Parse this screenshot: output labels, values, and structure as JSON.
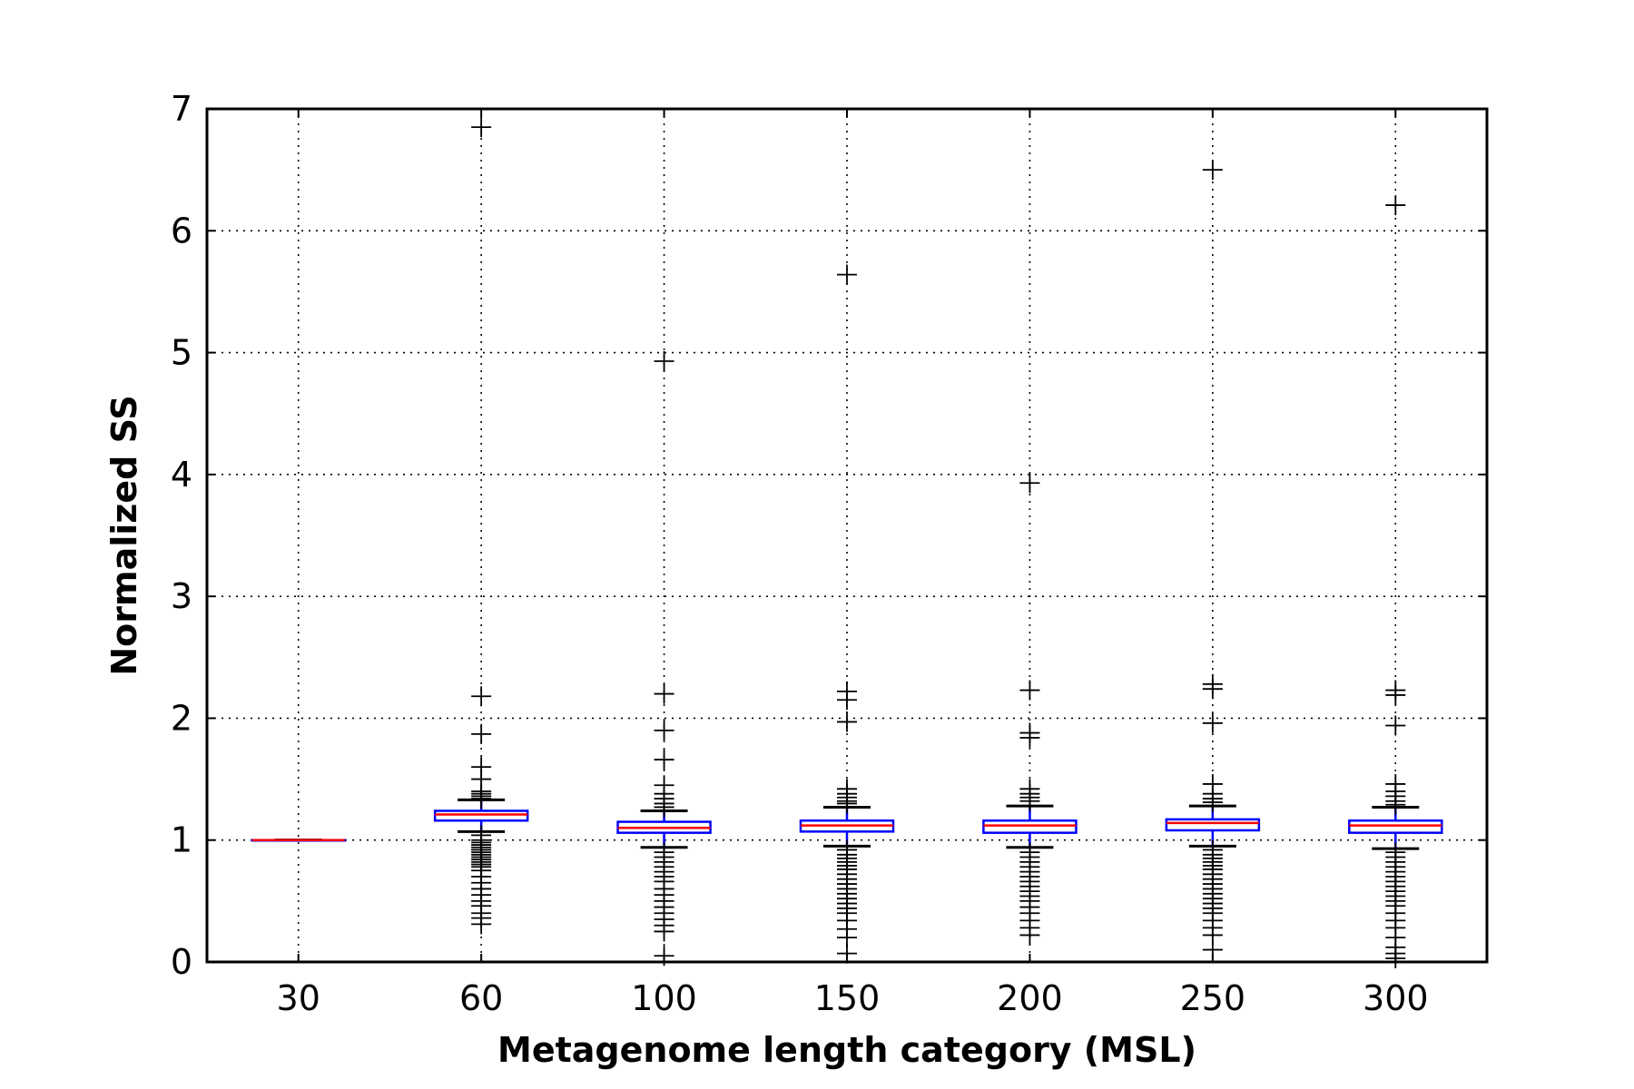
{
  "chart_data": {
    "type": "boxplot",
    "title": "",
    "xlabel": "Metagenome length category (MSL)",
    "ylabel": "Normalized SS",
    "categories": [
      "30",
      "60",
      "100",
      "150",
      "200",
      "250",
      "300"
    ],
    "ylim": [
      0,
      7
    ],
    "yticks": [
      0,
      1,
      2,
      3,
      4,
      5,
      6,
      7
    ],
    "grid": true,
    "grid_style": "dotted",
    "colors": {
      "box": "#0000ff",
      "median": "#ff0000",
      "whisker": "#000000",
      "flier": "#000000"
    },
    "boxes": [
      {
        "category": "30",
        "q1": 1.0,
        "median": 1.0,
        "q3": 1.0,
        "whisker_low": 1.0,
        "whisker_high": 1.0,
        "fliers": []
      },
      {
        "category": "60",
        "q1": 1.16,
        "median": 1.21,
        "q3": 1.24,
        "whisker_low": 1.07,
        "whisker_high": 1.33,
        "fliers": [
          6.85,
          2.18,
          1.87,
          1.6,
          1.5,
          1.4,
          1.38,
          1.36,
          1.34,
          1.04,
          1.0,
          0.98,
          0.96,
          0.94,
          0.92,
          0.9,
          0.88,
          0.86,
          0.84,
          0.82,
          0.8,
          0.78,
          0.75,
          0.7,
          0.65,
          0.6,
          0.55,
          0.5,
          0.46,
          0.4,
          0.36,
          0.31
        ]
      },
      {
        "category": "100",
        "q1": 1.06,
        "median": 1.1,
        "q3": 1.15,
        "whisker_low": 0.94,
        "whisker_high": 1.24,
        "fliers": [
          4.93,
          2.2,
          1.9,
          1.66,
          1.45,
          1.38,
          1.34,
          1.3,
          1.27,
          0.9,
          0.86,
          0.82,
          0.78,
          0.74,
          0.7,
          0.66,
          0.6,
          0.55,
          0.5,
          0.45,
          0.4,
          0.35,
          0.3,
          0.25,
          0.05
        ]
      },
      {
        "category": "150",
        "q1": 1.07,
        "median": 1.12,
        "q3": 1.16,
        "whisker_low": 0.95,
        "whisker_high": 1.27,
        "fliers": [
          5.64,
          2.22,
          2.15,
          1.97,
          1.42,
          1.38,
          1.35,
          1.32,
          1.3,
          0.92,
          0.88,
          0.85,
          0.82,
          0.79,
          0.76,
          0.72,
          0.68,
          0.64,
          0.6,
          0.56,
          0.52,
          0.48,
          0.44,
          0.4,
          0.34,
          0.27,
          0.2,
          0.07
        ]
      },
      {
        "category": "200",
        "q1": 1.06,
        "median": 1.12,
        "q3": 1.16,
        "whisker_low": 0.94,
        "whisker_high": 1.28,
        "fliers": [
          3.93,
          2.23,
          1.88,
          1.84,
          1.42,
          1.38,
          1.35,
          1.32,
          0.9,
          0.86,
          0.82,
          0.78,
          0.74,
          0.7,
          0.66,
          0.62,
          0.58,
          0.54,
          0.5,
          0.45,
          0.4,
          0.34,
          0.28,
          0.22
        ]
      },
      {
        "category": "250",
        "q1": 1.08,
        "median": 1.14,
        "q3": 1.17,
        "whisker_low": 0.95,
        "whisker_high": 1.28,
        "fliers": [
          6.5,
          2.28,
          2.24,
          1.96,
          1.46,
          1.38,
          1.34,
          1.31,
          0.92,
          0.88,
          0.85,
          0.82,
          0.79,
          0.76,
          0.72,
          0.68,
          0.64,
          0.6,
          0.56,
          0.52,
          0.48,
          0.44,
          0.4,
          0.34,
          0.28,
          0.22,
          0.1
        ]
      },
      {
        "category": "300",
        "q1": 1.06,
        "median": 1.12,
        "q3": 1.16,
        "whisker_low": 0.93,
        "whisker_high": 1.27,
        "fliers": [
          6.21,
          2.23,
          2.19,
          1.94,
          1.46,
          1.4,
          1.36,
          1.32,
          1.29,
          0.9,
          0.86,
          0.82,
          0.78,
          0.74,
          0.7,
          0.66,
          0.62,
          0.58,
          0.54,
          0.5,
          0.46,
          0.4,
          0.34,
          0.28,
          0.2,
          0.12,
          0.07,
          0.03
        ]
      }
    ]
  }
}
